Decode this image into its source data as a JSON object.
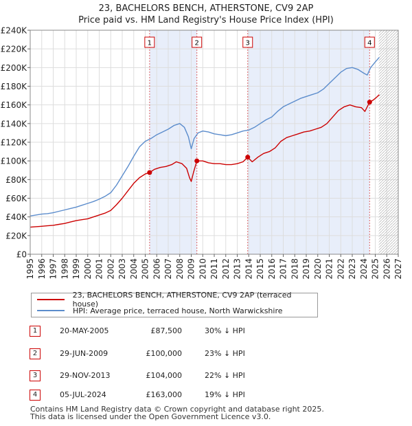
{
  "chart_data": {
    "type": "line",
    "title": "23, BACHELORS BENCH, ATHERSTONE, CV9 2AP",
    "subtitle": "Price paid vs. HM Land Registry's House Price Index (HPI)",
    "xlabel": "",
    "ylabel": "",
    "xlim": [
      1995,
      2027
    ],
    "ylim": [
      0,
      240000
    ],
    "x_ticks": [
      "1995",
      "1996",
      "1997",
      "1998",
      "1999",
      "2000",
      "2001",
      "2002",
      "2003",
      "2004",
      "2005",
      "2006",
      "2007",
      "2008",
      "2009",
      "2010",
      "2011",
      "2012",
      "2013",
      "2014",
      "2015",
      "2016",
      "2017",
      "2018",
      "2019",
      "2020",
      "2021",
      "2022",
      "2023",
      "2024",
      "2025",
      "2026",
      "2027"
    ],
    "y_ticks": [
      {
        "value": 0,
        "label": "£0"
      },
      {
        "value": 20000,
        "label": "£20K"
      },
      {
        "value": 40000,
        "label": "£40K"
      },
      {
        "value": 60000,
        "label": "£60K"
      },
      {
        "value": 80000,
        "label": "£80K"
      },
      {
        "value": 100000,
        "label": "£100K"
      },
      {
        "value": 120000,
        "label": "£120K"
      },
      {
        "value": 140000,
        "label": "£140K"
      },
      {
        "value": 160000,
        "label": "£160K"
      },
      {
        "value": 180000,
        "label": "£180K"
      },
      {
        "value": 200000,
        "label": "£200K"
      },
      {
        "value": 220000,
        "label": "£220K"
      },
      {
        "value": 240000,
        "label": "£240K"
      }
    ],
    "shaded_periods": [
      [
        2005.38,
        2009.49
      ],
      [
        2013.91,
        2024.51
      ]
    ],
    "future_hatch_from": 2025.3,
    "series": [
      {
        "name": "23, BACHELORS BENCH, ATHERSTONE, CV9 2AP (terraced house)",
        "color": "#cc0000",
        "points": [
          [
            1995,
            29000
          ],
          [
            1995.5,
            29500
          ],
          [
            1996,
            30000
          ],
          [
            1996.5,
            30500
          ],
          [
            1997,
            31000
          ],
          [
            1997.5,
            32000
          ],
          [
            1998,
            33000
          ],
          [
            1998.5,
            34500
          ],
          [
            1999,
            36000
          ],
          [
            1999.5,
            37000
          ],
          [
            2000,
            38000
          ],
          [
            2000.5,
            40000
          ],
          [
            2001,
            42000
          ],
          [
            2001.5,
            44000
          ],
          [
            2002,
            47000
          ],
          [
            2002.5,
            53000
          ],
          [
            2003,
            60000
          ],
          [
            2003.5,
            68000
          ],
          [
            2004,
            76000
          ],
          [
            2004.5,
            82000
          ],
          [
            2005,
            86000
          ],
          [
            2005.38,
            87500
          ],
          [
            2005.8,
            91000
          ],
          [
            2006.3,
            93000
          ],
          [
            2006.8,
            94000
          ],
          [
            2007.3,
            96000
          ],
          [
            2007.7,
            99000
          ],
          [
            2008.2,
            97000
          ],
          [
            2008.6,
            92000
          ],
          [
            2008.85,
            82000
          ],
          [
            2009.0,
            78000
          ],
          [
            2009.2,
            88000
          ],
          [
            2009.49,
            100000
          ],
          [
            2010,
            100000
          ],
          [
            2010.5,
            98000
          ],
          [
            2011,
            97000
          ],
          [
            2011.5,
            97000
          ],
          [
            2012,
            96000
          ],
          [
            2012.5,
            96000
          ],
          [
            2013,
            97000
          ],
          [
            2013.5,
            99000
          ],
          [
            2013.91,
            104000
          ],
          [
            2014.3,
            99000
          ],
          [
            2014.8,
            104000
          ],
          [
            2015.3,
            108000
          ],
          [
            2015.8,
            110000
          ],
          [
            2016.3,
            114000
          ],
          [
            2016.8,
            121000
          ],
          [
            2017.3,
            125000
          ],
          [
            2017.8,
            127000
          ],
          [
            2018.3,
            129000
          ],
          [
            2018.8,
            131000
          ],
          [
            2019.3,
            132000
          ],
          [
            2019.8,
            134000
          ],
          [
            2020.3,
            136000
          ],
          [
            2020.8,
            140000
          ],
          [
            2021.3,
            147000
          ],
          [
            2021.8,
            154000
          ],
          [
            2022.3,
            158000
          ],
          [
            2022.8,
            160000
          ],
          [
            2023.3,
            158000
          ],
          [
            2023.8,
            157000
          ],
          [
            2024.1,
            153000
          ],
          [
            2024.51,
            163000
          ],
          [
            2024.8,
            165000
          ],
          [
            2025.1,
            168000
          ],
          [
            2025.35,
            171000
          ]
        ]
      },
      {
        "name": "HPI: Average price, terraced house, North Warwickshire",
        "color": "#5b8ccc",
        "points": [
          [
            1995,
            41000
          ],
          [
            1995.5,
            42000
          ],
          [
            1996,
            43000
          ],
          [
            1996.5,
            43500
          ],
          [
            1997,
            44500
          ],
          [
            1997.5,
            46000
          ],
          [
            1998,
            47500
          ],
          [
            1998.5,
            49000
          ],
          [
            1999,
            50500
          ],
          [
            1999.5,
            52500
          ],
          [
            2000,
            54500
          ],
          [
            2000.5,
            56500
          ],
          [
            2001,
            59000
          ],
          [
            2001.5,
            62000
          ],
          [
            2002,
            66000
          ],
          [
            2002.5,
            74000
          ],
          [
            2003,
            84000
          ],
          [
            2003.5,
            94000
          ],
          [
            2004,
            105000
          ],
          [
            2004.5,
            115000
          ],
          [
            2005,
            121000
          ],
          [
            2005.5,
            124000
          ],
          [
            2006,
            128000
          ],
          [
            2006.5,
            131000
          ],
          [
            2007,
            134000
          ],
          [
            2007.5,
            138000
          ],
          [
            2008,
            140000
          ],
          [
            2008.4,
            136000
          ],
          [
            2008.75,
            126000
          ],
          [
            2009.0,
            113000
          ],
          [
            2009.25,
            124000
          ],
          [
            2009.6,
            130000
          ],
          [
            2010,
            132000
          ],
          [
            2010.5,
            131000
          ],
          [
            2011,
            129000
          ],
          [
            2011.5,
            128000
          ],
          [
            2012,
            127000
          ],
          [
            2012.5,
            128000
          ],
          [
            2013,
            130000
          ],
          [
            2013.5,
            132000
          ],
          [
            2014,
            133000
          ],
          [
            2014.5,
            136000
          ],
          [
            2015,
            140000
          ],
          [
            2015.5,
            144000
          ],
          [
            2016,
            147000
          ],
          [
            2016.5,
            153000
          ],
          [
            2017,
            158000
          ],
          [
            2017.5,
            161000
          ],
          [
            2018,
            164000
          ],
          [
            2018.5,
            167000
          ],
          [
            2019,
            169000
          ],
          [
            2019.5,
            171000
          ],
          [
            2020,
            173000
          ],
          [
            2020.5,
            177000
          ],
          [
            2021,
            183000
          ],
          [
            2021.5,
            189000
          ],
          [
            2022,
            195000
          ],
          [
            2022.5,
            199000
          ],
          [
            2023,
            200000
          ],
          [
            2023.5,
            198000
          ],
          [
            2024,
            194000
          ],
          [
            2024.3,
            192000
          ],
          [
            2024.6,
            200000
          ],
          [
            2025,
            206000
          ],
          [
            2025.35,
            211000
          ]
        ]
      }
    ],
    "sales": [
      {
        "id": "1",
        "x": 2005.38,
        "price": 87500
      },
      {
        "id": "2",
        "x": 2009.49,
        "price": 100000
      },
      {
        "id": "3",
        "x": 2013.91,
        "price": 104000
      },
      {
        "id": "4",
        "x": 2024.51,
        "price": 163000
      }
    ]
  },
  "legend": {
    "property": "23, BACHELORS BENCH, ATHERSTONE, CV9 2AP (terraced house)",
    "hpi": "HPI: Average price, terraced house, North Warwickshire"
  },
  "table": [
    {
      "num": "1",
      "date": "20-MAY-2005",
      "price": "£87,500",
      "hpi": "30% ↓ HPI"
    },
    {
      "num": "2",
      "date": "29-JUN-2009",
      "price": "£100,000",
      "hpi": "23% ↓ HPI"
    },
    {
      "num": "3",
      "date": "29-NOV-2013",
      "price": "£104,000",
      "hpi": "22% ↓ HPI"
    },
    {
      "num": "4",
      "date": "05-JUL-2024",
      "price": "£163,000",
      "hpi": "19% ↓ HPI"
    }
  ],
  "footer": {
    "line1": "Contains HM Land Registry data © Crown copyright and database right 2025.",
    "line2": "This data is licensed under the Open Government Licence v3.0."
  },
  "colors": {
    "property": "#cc0000",
    "hpi": "#5b8ccc",
    "shade": "#e8eefa",
    "grid": "#dddddd"
  }
}
